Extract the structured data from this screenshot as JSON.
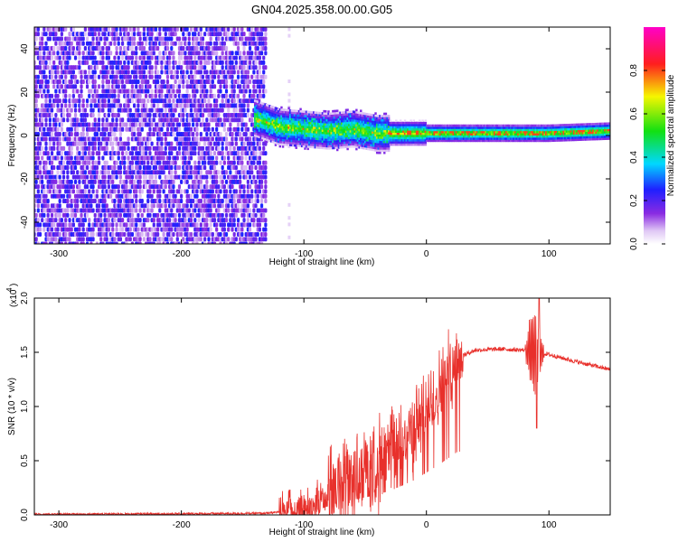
{
  "title": "GN04.2025.358.00.00.G05",
  "chart_data": [
    {
      "type": "heatmap",
      "xlabel": "Height of straight line (km)",
      "ylabel": "Frequency (Hz)",
      "xlim": [
        -320,
        150
      ],
      "ylim": [
        -50,
        50
      ],
      "xticks": [
        -300,
        -200,
        -100,
        0,
        100
      ],
      "yticks": [
        -40,
        -20,
        0,
        20,
        40
      ],
      "colorbar": {
        "label": "Normalized spectral amplitude",
        "range": [
          0,
          1
        ],
        "ticks": [
          "0.0",
          "0.2",
          "0.4",
          "0.6",
          "0.8"
        ],
        "colormap": "rainbow (white-purple-blue-cyan-green-yellow-red-magenta)"
      },
      "signal_band": {
        "description": "noise-dominated region below the start, then a narrow band around 0 Hz",
        "noise_region_x": [
          -320,
          -130
        ],
        "band_center": [
          {
            "x": -140,
            "f": 8
          },
          {
            "x": -120,
            "f": 4
          },
          {
            "x": -100,
            "f": 3
          },
          {
            "x": -80,
            "f": 2
          },
          {
            "x": -60,
            "f": 3
          },
          {
            "x": -40,
            "f": 1
          },
          {
            "x": -20,
            "f": 1
          },
          {
            "x": 0,
            "f": 1
          },
          {
            "x": 20,
            "f": 1
          },
          {
            "x": 60,
            "f": 1
          },
          {
            "x": 100,
            "f": 1
          },
          {
            "x": 150,
            "f": 2
          }
        ]
      }
    },
    {
      "type": "line",
      "xlabel": "Height of straight line (km)",
      "ylabel": "SNR (10 * v/v)",
      "y_multiplier": "(x10",
      "y_multiplier_exp": "4",
      "xlim": [
        -320,
        150
      ],
      "ylim": [
        0,
        2.0
      ],
      "xticks": [
        -300,
        -200,
        -100,
        0,
        100
      ],
      "yticks": [
        "0.0",
        "0.5",
        "1.0",
        "1.5",
        "2.0"
      ],
      "color": "#e8302b",
      "envelope": [
        {
          "x": -320,
          "y": 0.005
        },
        {
          "x": -200,
          "y": 0.01
        },
        {
          "x": -130,
          "y": 0.015
        },
        {
          "x": -110,
          "y": 0.04
        },
        {
          "x": -90,
          "y": 0.1
        },
        {
          "x": -70,
          "y": 0.3
        },
        {
          "x": -50,
          "y": 0.4
        },
        {
          "x": -30,
          "y": 0.55
        },
        {
          "x": -10,
          "y": 0.8
        },
        {
          "x": 10,
          "y": 1.15
        },
        {
          "x": 25,
          "y": 1.45
        },
        {
          "x": 40,
          "y": 1.52
        },
        {
          "x": 60,
          "y": 1.53
        },
        {
          "x": 80,
          "y": 1.52
        },
        {
          "x": 100,
          "y": 1.48
        },
        {
          "x": 120,
          "y": 1.42
        },
        {
          "x": 150,
          "y": 1.34
        }
      ],
      "notable": {
        "dip_at_x": 90,
        "dip_y": 0.8,
        "peak_at_x": 92,
        "peak_y": 2.0
      }
    }
  ]
}
